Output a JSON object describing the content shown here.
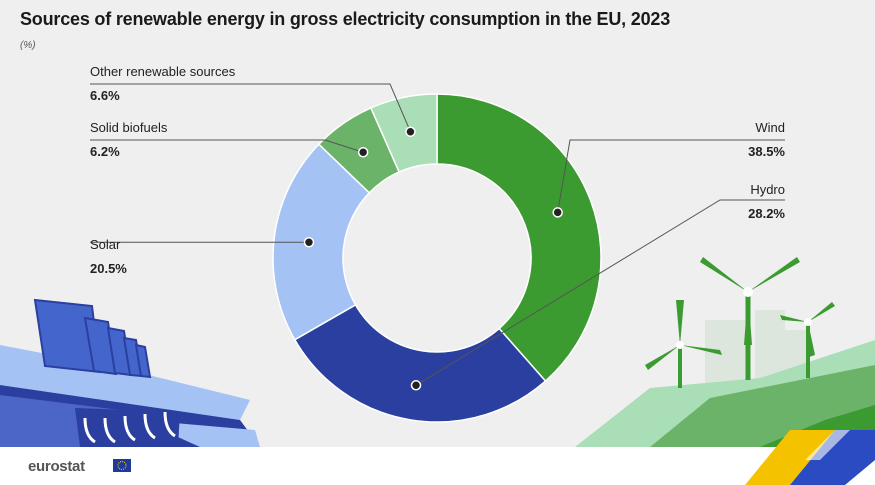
{
  "header": {
    "title": "Sources of renewable energy in gross electricity consumption in the EU, 2023",
    "unit": "(%)"
  },
  "footer": {
    "brand": "eurostat"
  },
  "colors": {
    "background": "#efefef",
    "wind": "#3b9b30",
    "hydro": "#2a3fa0",
    "solar": "#a4c2f4",
    "solid_biofuels": "#6cb36a",
    "other": "#a9deb6",
    "leader": "#555555"
  },
  "chart_data": {
    "type": "pie",
    "subtype": "donut",
    "title": "Sources of renewable energy in gross electricity consumption in the EU, 2023",
    "unit": "(%)",
    "slices": [
      {
        "label": "Wind",
        "value": 38.5,
        "display": "38.5%",
        "color": "#3b9b30"
      },
      {
        "label": "Hydro",
        "value": 28.2,
        "display": "28.2%",
        "color": "#2a3fa0"
      },
      {
        "label": "Solar",
        "value": 20.5,
        "display": "20.5%",
        "color": "#a4c2f4"
      },
      {
        "label": "Solid biofuels",
        "value": 6.2,
        "display": "6.2%",
        "color": "#6cb36a"
      },
      {
        "label": "Other renewable sources",
        "value": 6.6,
        "display": "6.6%",
        "color": "#a9deb6"
      }
    ]
  }
}
